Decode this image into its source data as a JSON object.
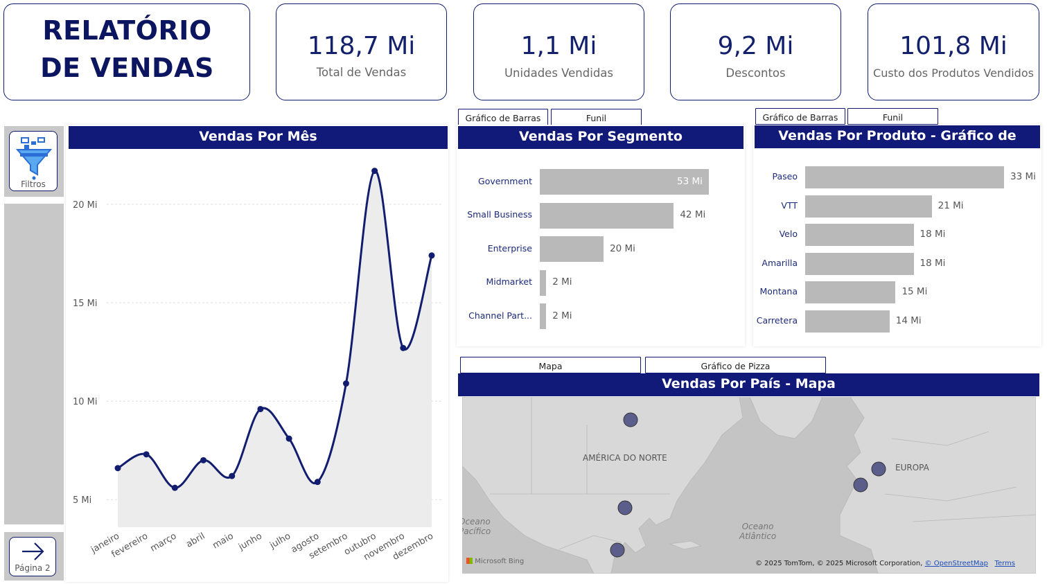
{
  "report": {
    "title_line1": "RELATÓRIO",
    "title_line2": "DE VENDAS"
  },
  "kpis": [
    {
      "value": "118,7 Mi",
      "label": "Total de Vendas"
    },
    {
      "value": "1,1 Mi",
      "label": "Unidades Vendidas"
    },
    {
      "value": "9,2 Mi",
      "label": "Descontos"
    },
    {
      "value": "101,8 Mi",
      "label": "Custo dos Produtos Vendidos"
    }
  ],
  "rail": {
    "filters_label": "Filtros",
    "next_page_label": "Página 2",
    "filter_icon": "filter-funnel-icon",
    "next_icon": "arrow-right-icon"
  },
  "colors": {
    "header_navy": "#111a78",
    "kpi_value": "#13206b",
    "bar_gray": "#b9b9b9",
    "line_navy": "#121d70",
    "area_fill": "#ececec"
  },
  "segment_panel": {
    "tabs": [
      "Gráfico de Barras",
      "Funil"
    ],
    "title": "Vendas Por Segmento"
  },
  "product_panel": {
    "tabs": [
      "Gráfico de Barras",
      "Funil"
    ],
    "title": "Vendas Por Produto - Gráfico de Barras"
  },
  "map_panel": {
    "tabs": [
      "Mapa",
      "Gráfico de Pizza"
    ],
    "title": "Vendas Por País - Mapa",
    "labels": {
      "north_america": "AMÉRICA DO NORTE",
      "europe": "EUROPA",
      "atlantic_line1": "Oceano",
      "atlantic_line2": "Atlântico",
      "pacific_line1": "Oceano",
      "pacific_line2": "Pacífico"
    },
    "attribution": "© 2025 TomTom, © 2025 Microsoft Corporation,",
    "osm_link": "© OpenStreetMap",
    "terms_link": "Terms",
    "bing_logo": "Microsoft Bing"
  },
  "chart_data": [
    {
      "type": "area",
      "title": "Vendas Por Mês",
      "categories": [
        "janeiro",
        "fevereiro",
        "março",
        "abril",
        "maio",
        "junho",
        "julho",
        "agosto",
        "setembro",
        "outubro",
        "novembro",
        "dezembro"
      ],
      "values": [
        6.6,
        7.3,
        5.6,
        7.0,
        6.2,
        9.6,
        8.1,
        5.9,
        10.9,
        21.7,
        12.7,
        17.4
      ],
      "y_ticks": [
        5,
        10,
        15,
        20
      ],
      "y_tick_labels": [
        "5 Mi",
        "10 Mi",
        "15 Mi",
        "20 Mi"
      ],
      "ylim": [
        3.6,
        22.6
      ],
      "grid": true
    },
    {
      "type": "bar",
      "orientation": "horizontal",
      "title": "Vendas Por Segmento",
      "categories": [
        "Government",
        "Small Business",
        "Enterprise",
        "Midmarket",
        "Channel Part..."
      ],
      "values": [
        53,
        42,
        20,
        2,
        2
      ],
      "value_labels": [
        "53 Mi",
        "42 Mi",
        "20 Mi",
        "2 Mi",
        "2 Mi"
      ]
    },
    {
      "type": "bar",
      "orientation": "horizontal",
      "title": "Vendas Por Produto - Gráfico de Barras",
      "categories": [
        "Paseo",
        "VTT",
        "Velo",
        "Amarilla",
        "Montana",
        "Carretera"
      ],
      "values": [
        33,
        21,
        18,
        18,
        15,
        14
      ],
      "value_labels": [
        "33 Mi",
        "21 Mi",
        "18 Mi",
        "18 Mi",
        "15 Mi",
        "14 Mi"
      ]
    }
  ]
}
